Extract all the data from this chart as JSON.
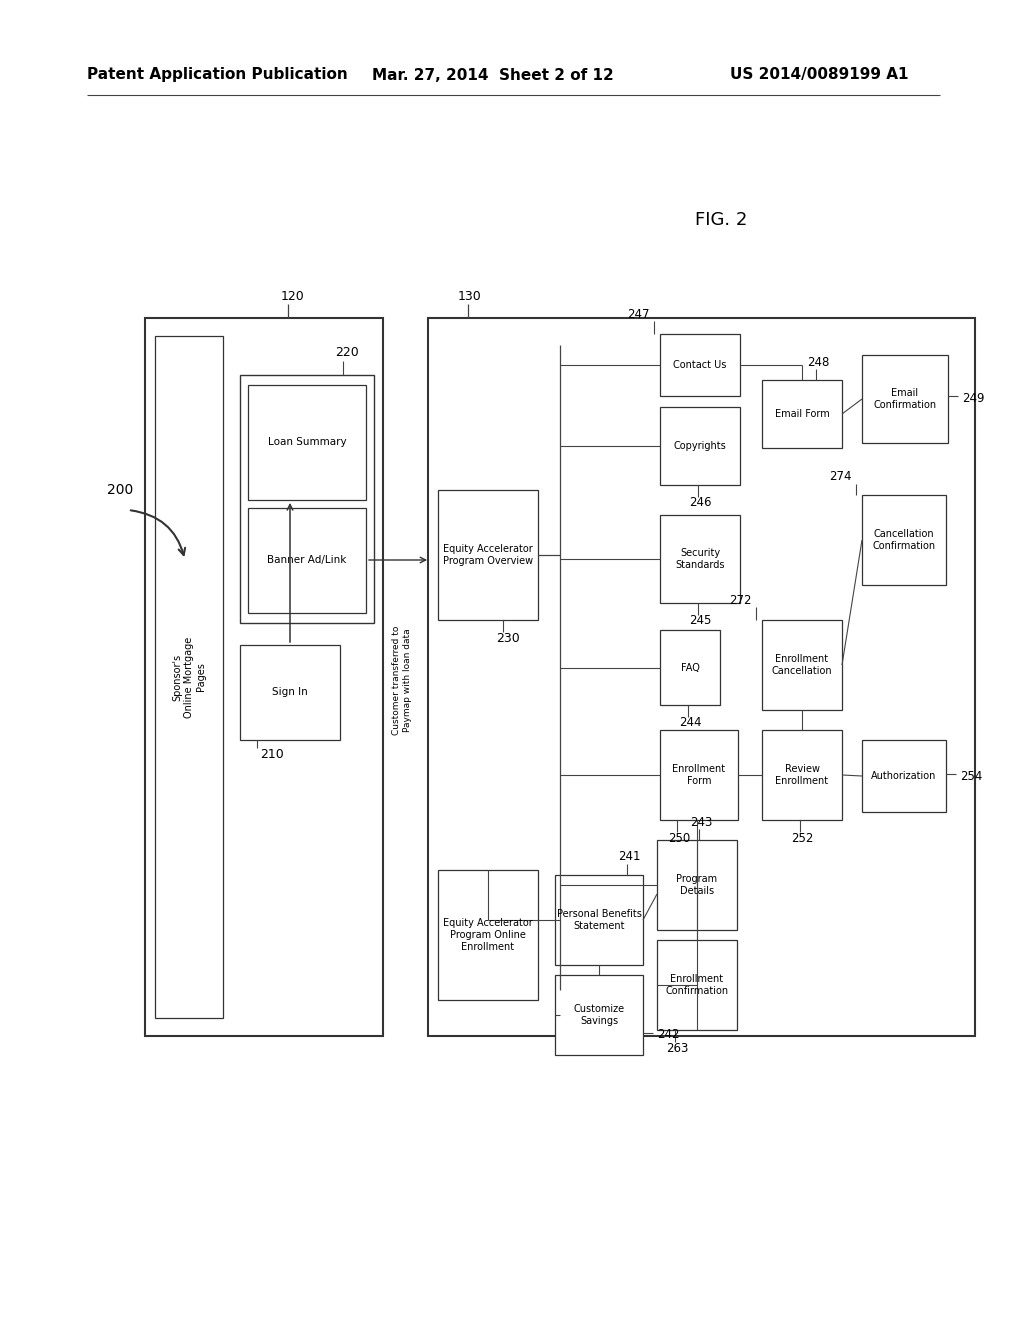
{
  "bg_color": "#ffffff",
  "header_left": "Patent Application Publication",
  "header_mid": "Mar. 27, 2014  Sheet 2 of 12",
  "header_right": "US 2014/0089199 A1",
  "fig_label": "FIG. 2",
  "label_200": "200",
  "label_120": "120",
  "label_130": "130",
  "label_210": "210",
  "label_220": "220",
  "label_230": "230",
  "label_241": "241",
  "label_242": "242",
  "label_243": "243",
  "label_244": "244",
  "label_245": "245",
  "label_246": "246",
  "label_247": "247",
  "label_248": "248",
  "label_249": "249",
  "label_250": "250",
  "label_252": "252",
  "label_254": "254",
  "label_263": "263",
  "label_272": "272",
  "label_274": "274",
  "text_sponsor": "Sponsor's\nOnline Mortgage\nPages",
  "text_signin": "Sign In",
  "text_loansummary": "Loan Summary",
  "text_banner": "Banner Ad/Link",
  "text_equity_overview": "Equity Accelerator\nProgram Overview",
  "text_equity_enrollment": "Equity Accelerator\nProgram Online\nEnrollment",
  "text_personal_benefits": "Personal Benefits\nStatement",
  "text_customize_savings": "Customize\nSavings",
  "text_program_details": "Program\nDetails",
  "text_enrollment_form": "Enrollment\nForm",
  "text_review_enrollment": "Review\nEnrollment",
  "text_authorization": "Authorization",
  "text_faq": "FAQ",
  "text_security_standards": "Security\nStandards",
  "text_copyrights": "Copyrights",
  "text_contact_us": "Contact Us",
  "text_email_form": "Email Form",
  "text_email_confirmation": "Email\nConfirmation",
  "text_enrollment_confirmation": "Enrollment\nConfirmation",
  "text_enrollment_cancellation": "Enrollment\nCancellation",
  "text_cancellation_confirmation": "Cancellation\nConfirmation",
  "text_customer_transferred": "Customer transferred to\nPaymap with loan data"
}
